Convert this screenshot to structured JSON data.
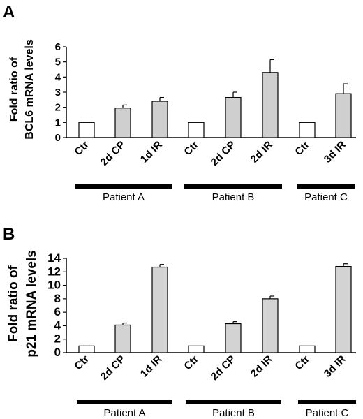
{
  "chart_data": [
    {
      "type": "bar",
      "panel_label": "A",
      "ylabel_lines": [
        "Fold ratio of",
        "BCL6 mRNA levels"
      ],
      "ylim": [
        0,
        6
      ],
      "yticks": [
        "0",
        "1",
        "2",
        "3",
        "4",
        "5",
        "6"
      ],
      "categories": [
        "Ctr",
        "2d CP",
        "1d IR",
        "Ctr",
        "2d CP",
        "2d IR",
        "Ctr",
        "3d IR"
      ],
      "values": [
        1.0,
        1.95,
        2.4,
        1.0,
        2.65,
        4.3,
        1.0,
        2.9
      ],
      "errors": [
        0,
        0.2,
        0.25,
        0,
        0.35,
        0.85,
        0,
        0.65
      ],
      "control_color": "#ffffff",
      "treated_color": "#cfcfcf",
      "groups": [
        {
          "name": "Patient A",
          "from": 0,
          "to": 2
        },
        {
          "name": "Patient B",
          "from": 3,
          "to": 5
        },
        {
          "name": "Patient C",
          "from": 6,
          "to": 7
        }
      ]
    },
    {
      "type": "bar",
      "panel_label": "B",
      "ylabel_lines": [
        "Fold ratio of",
        "p21 mRNA levels"
      ],
      "ylim": [
        0,
        14
      ],
      "yticks": [
        "0",
        "2",
        "4",
        "6",
        "8",
        "10",
        "12",
        "14"
      ],
      "categories": [
        "Ctr",
        "2d CP",
        "1d IR",
        "Ctr",
        "2d CP",
        "2d IR",
        "Ctr",
        "3d IR"
      ],
      "values": [
        1.0,
        4.1,
        12.7,
        1.0,
        4.3,
        8.0,
        1.0,
        12.8
      ],
      "errors": [
        0,
        0.3,
        0.4,
        0,
        0.3,
        0.4,
        0,
        0.4
      ],
      "control_color": "#ffffff",
      "treated_color": "#d3d3d3",
      "groups": [
        {
          "name": "Patient A",
          "from": 0,
          "to": 2
        },
        {
          "name": "Patient B",
          "from": 3,
          "to": 5
        },
        {
          "name": "Patient C",
          "from": 6,
          "to": 7
        }
      ]
    }
  ]
}
